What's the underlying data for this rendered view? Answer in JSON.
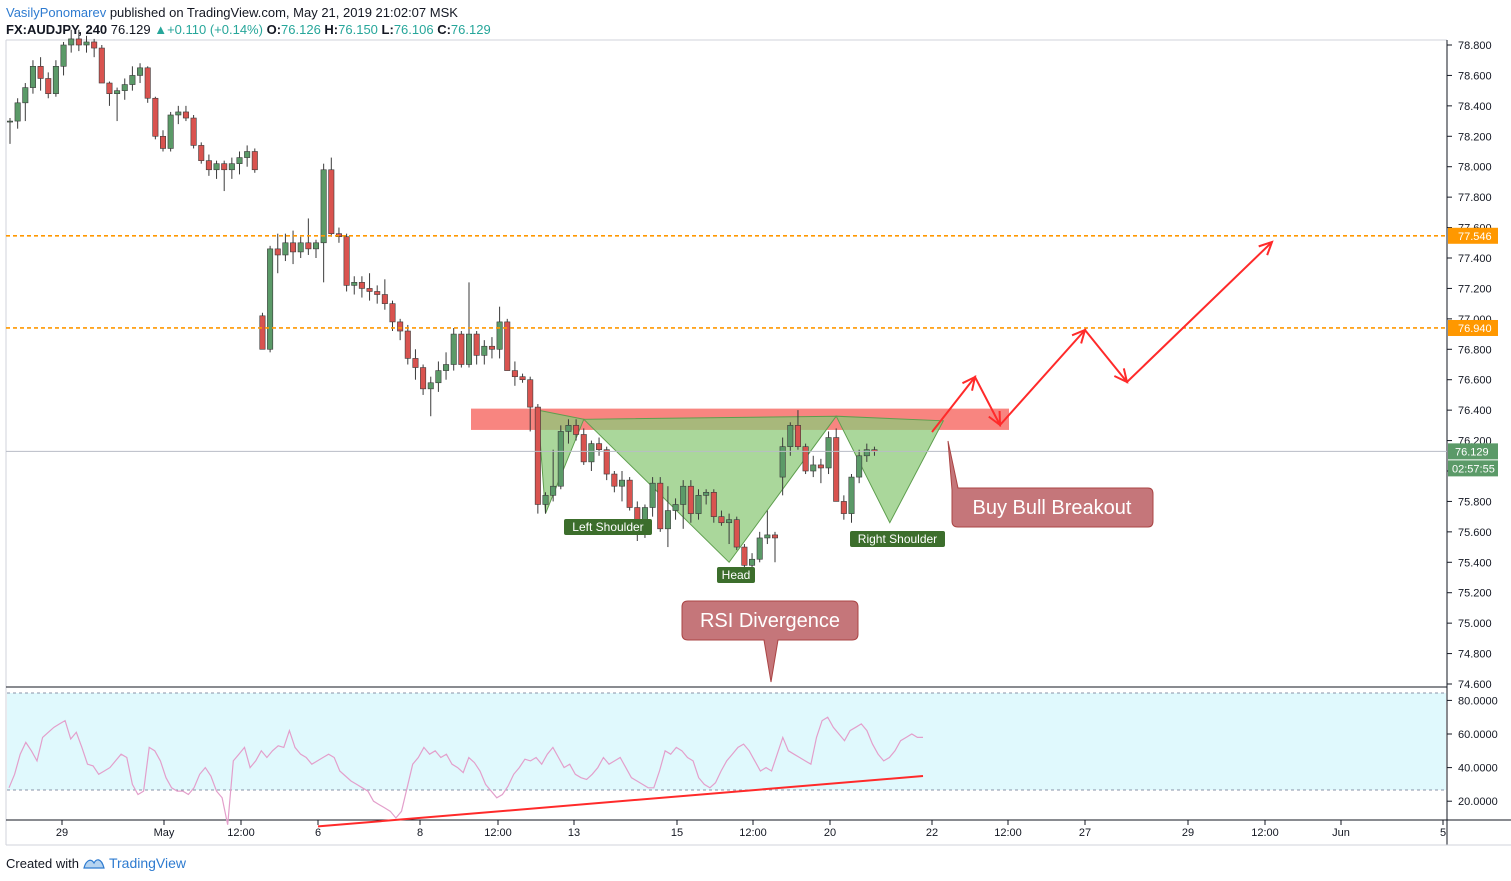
{
  "header": {
    "author": "VasilyPonomarev",
    "published_text": "published on TradingView.com, May 21, 2019 21:02:07 MSK",
    "symbol": "FX:AUDJPY",
    "interval": ", 240",
    "last": "76.129",
    "change": "+0.110 (+0.14%)",
    "o_label": "O:",
    "o": "76.126",
    "h_label": "H:",
    "h": "76.150",
    "l_label": "L:",
    "l": "76.106",
    "c_label": "C:",
    "c": "76.129"
  },
  "footer": {
    "created_with": "Created with",
    "brand": "TradingView"
  },
  "colors": {
    "bull": "#5b9a68",
    "bear": "#d9534f",
    "orange": "#ff9800",
    "pattern": "#8ec97a",
    "zone": "#f7706a",
    "arrow": "#ff2a2a",
    "label_green": "#3c6e2c",
    "callout": "#c5767a",
    "rsi_bg": "#e0f9fd",
    "rsi_line": "#e39fcb"
  },
  "chart_data": {
    "type": "candlestick",
    "price_axis": {
      "ylim": [
        74.6,
        78.8
      ],
      "ticks": [
        "74.600",
        "74.800",
        "75.000",
        "75.200",
        "75.400",
        "75.600",
        "75.800",
        "76.000",
        "76.200",
        "76.400",
        "76.600",
        "76.800",
        "77.000",
        "77.200",
        "77.400",
        "77.600",
        "77.800",
        "78.000",
        "78.200",
        "78.400",
        "78.600",
        "78.800"
      ]
    },
    "x_ticks": [
      "29",
      "May",
      "12:00",
      "6",
      "8",
      "12:00",
      "13",
      "15",
      "12:00",
      "20",
      "22",
      "12:00",
      "27",
      "29",
      "12:00",
      "Jun",
      "5"
    ],
    "hlines": [
      {
        "price": 77.546,
        "label": "77.546"
      },
      {
        "price": 76.94,
        "label": "76.940"
      }
    ],
    "last_price": {
      "price": 76.129,
      "label": "76.129",
      "countdown": "02:57:55"
    },
    "resistance_zone": [
      76.27,
      76.41
    ],
    "annotations": {
      "left_shoulder": "Left Shoulder",
      "head": "Head",
      "right_shoulder": "Right Shoulder",
      "rsi_divergence": "RSI Divergence",
      "buy": "Buy Bull Breakout"
    },
    "candles": [
      [
        78.3,
        78.32,
        78.15,
        78.3
      ],
      [
        78.3,
        78.45,
        78.25,
        78.42
      ],
      [
        78.42,
        78.55,
        78.3,
        78.52
      ],
      [
        78.52,
        78.7,
        78.48,
        78.66
      ],
      [
        78.66,
        78.72,
        78.5,
        78.58
      ],
      [
        78.58,
        78.62,
        78.45,
        78.48
      ],
      [
        78.48,
        78.7,
        78.46,
        78.66
      ],
      [
        78.66,
        78.82,
        78.6,
        78.8
      ],
      [
        78.8,
        78.9,
        78.75,
        78.84
      ],
      [
        78.84,
        78.9,
        78.76,
        78.8
      ],
      [
        78.8,
        78.86,
        78.75,
        78.82
      ],
      [
        78.82,
        78.84,
        78.72,
        78.78
      ],
      [
        78.78,
        78.8,
        78.55,
        78.55
      ],
      [
        78.55,
        78.56,
        78.4,
        78.48
      ],
      [
        78.48,
        78.52,
        78.3,
        78.5
      ],
      [
        78.5,
        78.58,
        78.44,
        78.54
      ],
      [
        78.54,
        78.66,
        78.5,
        78.6
      ],
      [
        78.6,
        78.68,
        78.55,
        78.65
      ],
      [
        78.65,
        78.66,
        78.42,
        78.45
      ],
      [
        78.45,
        78.46,
        78.18,
        78.2
      ],
      [
        78.2,
        78.24,
        78.1,
        78.12
      ],
      [
        78.12,
        78.36,
        78.1,
        78.34
      ],
      [
        78.34,
        78.4,
        78.28,
        78.36
      ],
      [
        78.36,
        78.4,
        78.3,
        78.32
      ],
      [
        78.32,
        78.34,
        78.12,
        78.14
      ],
      [
        78.14,
        78.16,
        78.02,
        78.04
      ],
      [
        78.04,
        78.08,
        77.94,
        77.98
      ],
      [
        77.98,
        78.04,
        77.92,
        78.02
      ],
      [
        78.02,
        78.04,
        77.84,
        77.98
      ],
      [
        77.98,
        78.06,
        77.92,
        78.02
      ],
      [
        78.02,
        78.1,
        77.95,
        78.06
      ],
      [
        78.06,
        78.14,
        78.0,
        78.1
      ],
      [
        78.1,
        78.12,
        77.96,
        77.98
      ],
      [
        77.02,
        77.04,
        76.8,
        76.8
      ],
      [
        76.8,
        77.48,
        76.78,
        77.46
      ],
      [
        77.46,
        77.56,
        77.3,
        77.42
      ],
      [
        77.42,
        77.56,
        77.38,
        77.5
      ],
      [
        77.5,
        77.58,
        77.36,
        77.44
      ],
      [
        77.44,
        77.54,
        77.4,
        77.5
      ],
      [
        77.5,
        77.66,
        77.42,
        77.46
      ],
      [
        77.46,
        77.52,
        77.4,
        77.5
      ],
      [
        77.5,
        78.02,
        77.24,
        77.98
      ],
      [
        77.98,
        78.06,
        77.54,
        77.56
      ],
      [
        77.56,
        77.6,
        77.5,
        77.54
      ],
      [
        77.54,
        77.56,
        77.18,
        77.22
      ],
      [
        77.22,
        77.28,
        77.16,
        77.24
      ],
      [
        77.24,
        77.28,
        77.14,
        77.2
      ],
      [
        77.2,
        77.3,
        77.12,
        77.18
      ],
      [
        77.18,
        77.22,
        77.1,
        77.16
      ],
      [
        77.16,
        77.26,
        77.06,
        77.1
      ],
      [
        77.1,
        77.12,
        76.92,
        76.98
      ],
      [
        76.98,
        77.0,
        76.86,
        76.92
      ],
      [
        76.92,
        76.96,
        76.7,
        76.74
      ],
      [
        76.74,
        76.8,
        76.6,
        76.68
      ],
      [
        76.68,
        76.7,
        76.5,
        76.54
      ],
      [
        76.54,
        76.62,
        76.36,
        76.58
      ],
      [
        76.58,
        76.72,
        76.52,
        76.66
      ],
      [
        76.66,
        76.78,
        76.6,
        76.7
      ],
      [
        76.7,
        76.94,
        76.66,
        76.9
      ],
      [
        76.9,
        76.92,
        76.68,
        76.7
      ],
      [
        76.7,
        77.24,
        76.68,
        76.9
      ],
      [
        76.9,
        76.92,
        76.7,
        76.76
      ],
      [
        76.76,
        76.86,
        76.7,
        76.82
      ],
      [
        76.82,
        76.88,
        76.74,
        76.8
      ],
      [
        76.8,
        77.08,
        76.74,
        76.98
      ],
      [
        76.98,
        77.0,
        76.66,
        76.66
      ],
      [
        76.66,
        76.72,
        76.56,
        76.62
      ],
      [
        76.62,
        76.64,
        76.58,
        76.6
      ],
      [
        76.6,
        76.62,
        76.26,
        76.42
      ],
      [
        76.42,
        76.44,
        75.72,
        75.78
      ],
      [
        75.78,
        75.86,
        75.72,
        75.84
      ],
      [
        75.84,
        76.14,
        75.8,
        75.9
      ],
      [
        75.9,
        76.3,
        75.88,
        76.26
      ],
      [
        76.26,
        76.34,
        76.18,
        76.3
      ],
      [
        76.3,
        76.34,
        76.2,
        76.24
      ],
      [
        76.24,
        76.28,
        76.04,
        76.06
      ],
      [
        76.06,
        76.2,
        76.0,
        76.18
      ],
      [
        76.18,
        76.22,
        76.1,
        76.14
      ],
      [
        76.14,
        76.16,
        75.94,
        75.98
      ],
      [
        75.98,
        76.0,
        75.86,
        75.9
      ],
      [
        75.9,
        76.0,
        75.8,
        75.94
      ],
      [
        75.94,
        75.96,
        75.74,
        75.76
      ],
      [
        75.76,
        75.8,
        75.54,
        75.6
      ],
      [
        75.6,
        75.78,
        75.56,
        75.76
      ],
      [
        75.76,
        75.96,
        75.7,
        75.92
      ],
      [
        75.92,
        75.96,
        75.6,
        75.62
      ],
      [
        75.62,
        75.9,
        75.5,
        75.74
      ],
      [
        75.74,
        75.82,
        75.68,
        75.78
      ],
      [
        75.78,
        75.94,
        75.62,
        75.9
      ],
      [
        75.9,
        75.94,
        75.66,
        75.72
      ],
      [
        75.72,
        75.88,
        75.68,
        75.84
      ],
      [
        75.84,
        75.88,
        75.78,
        75.86
      ],
      [
        75.86,
        75.88,
        75.66,
        75.7
      ],
      [
        75.7,
        75.74,
        75.64,
        75.66
      ],
      [
        75.66,
        75.72,
        75.52,
        75.68
      ],
      [
        75.68,
        75.7,
        75.48,
        75.5
      ],
      [
        75.5,
        75.52,
        75.36,
        75.38
      ],
      [
        75.38,
        75.46,
        75.34,
        75.42
      ],
      [
        75.42,
        75.6,
        75.4,
        75.56
      ],
      [
        75.56,
        75.74,
        75.52,
        75.58
      ],
      [
        75.58,
        75.6,
        75.4,
        75.56
      ],
      [
        75.96,
        76.22,
        75.84,
        76.16
      ],
      [
        76.16,
        76.32,
        76.1,
        76.3
      ],
      [
        76.3,
        76.4,
        76.14,
        76.16
      ],
      [
        76.16,
        76.18,
        75.98,
        76.0
      ],
      [
        76.0,
        76.1,
        75.96,
        76.04
      ],
      [
        76.04,
        76.08,
        75.92,
        76.02
      ],
      [
        76.02,
        76.26,
        75.98,
        76.22
      ],
      [
        76.22,
        76.28,
        75.8,
        75.8
      ],
      [
        75.8,
        75.84,
        75.68,
        75.72
      ],
      [
        75.72,
        75.98,
        75.66,
        75.96
      ],
      [
        75.96,
        76.14,
        75.92,
        76.1
      ],
      [
        76.1,
        76.18,
        76.06,
        76.14
      ],
      [
        76.14,
        76.16,
        76.1,
        76.13
      ]
    ],
    "rsi": {
      "levels": [
        "80.0000",
        "60.0000",
        "40.0000",
        "20.0000"
      ],
      "ylim": [
        10,
        85
      ],
      "bands": [
        30,
        80
      ],
      "values": [
        28,
        36,
        48,
        55,
        50,
        44,
        58,
        61,
        64,
        66,
        68,
        57,
        61,
        52,
        42,
        41,
        36,
        38,
        40,
        44,
        48,
        46,
        30,
        24,
        26,
        52,
        50,
        44,
        34,
        28,
        26,
        26,
        24,
        28,
        36,
        40,
        35,
        26,
        22,
        6,
        44,
        48,
        52,
        40,
        44,
        50,
        46,
        50,
        53,
        52,
        62,
        52,
        48,
        46,
        42,
        44,
        46,
        48,
        46,
        38,
        35,
        32,
        30,
        28,
        26,
        20,
        18,
        16,
        14,
        10,
        14,
        28,
        42,
        46,
        52,
        48,
        50,
        46,
        48,
        42,
        40,
        37,
        46,
        43,
        38,
        30,
        26,
        22,
        24,
        29,
        36,
        40,
        45,
        44,
        46,
        42,
        48,
        52,
        46,
        40,
        42,
        36,
        34,
        33,
        36,
        40,
        46,
        42,
        44,
        46,
        40,
        34,
        32,
        30,
        28,
        28,
        38,
        50,
        48,
        52,
        50,
        46,
        44,
        34,
        30,
        28,
        31,
        38,
        44,
        48,
        52,
        54,
        50,
        44,
        38,
        40,
        38,
        48,
        58,
        50,
        48,
        46,
        44,
        42,
        58,
        68,
        70,
        64,
        60,
        56,
        62,
        64,
        66,
        62,
        54,
        48,
        44,
        46,
        50,
        56,
        58,
        60,
        58,
        58
      ]
    }
  }
}
